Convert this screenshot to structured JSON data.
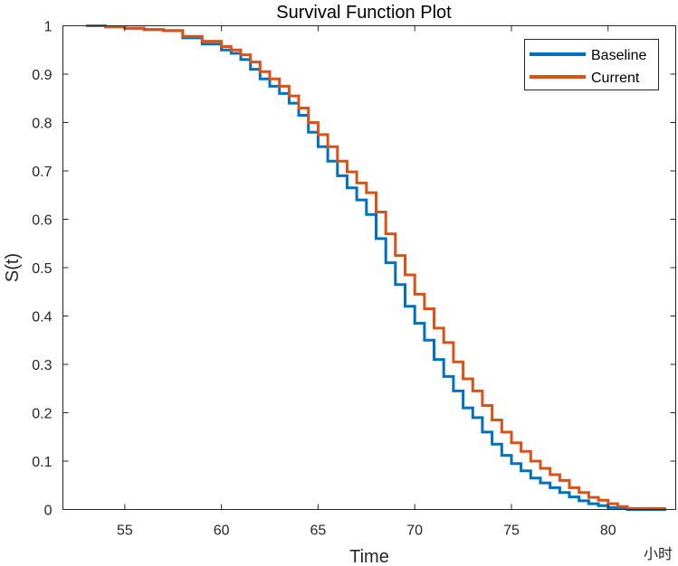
{
  "chart_data": {
    "type": "line",
    "title": "Survival Function Plot",
    "xlabel": "Time",
    "ylabel": "S(t)",
    "x_unit_note": "小时",
    "xlim": [
      51.8,
      83.5
    ],
    "ylim": [
      0,
      1
    ],
    "xticks": [
      55,
      60,
      65,
      70,
      75,
      80
    ],
    "yticks": [
      0,
      0.1,
      0.2,
      0.3,
      0.4,
      0.5,
      0.6,
      0.7,
      0.8,
      0.9,
      1
    ],
    "ytick_labels": [
      "0",
      "0.1",
      "0.2",
      "0.3",
      "0.4",
      "0.5",
      "0.6",
      "0.7",
      "0.8",
      "0.9",
      "1"
    ],
    "grid": false,
    "legend_position": "top-right",
    "series": [
      {
        "name": "Baseline",
        "color": "#0072BD",
        "points": [
          [
            53,
            1.0
          ],
          [
            54,
            0.998
          ],
          [
            55,
            0.995
          ],
          [
            56,
            0.992
          ],
          [
            57,
            0.99
          ],
          [
            58,
            0.975
          ],
          [
            59,
            0.962
          ],
          [
            60,
            0.95
          ],
          [
            60.5,
            0.943
          ],
          [
            61,
            0.93
          ],
          [
            61.5,
            0.91
          ],
          [
            62,
            0.89
          ],
          [
            62.5,
            0.875
          ],
          [
            63,
            0.86
          ],
          [
            63.5,
            0.84
          ],
          [
            64,
            0.815
          ],
          [
            64.5,
            0.78
          ],
          [
            65,
            0.75
          ],
          [
            65.5,
            0.72
          ],
          [
            66,
            0.69
          ],
          [
            66.5,
            0.665
          ],
          [
            67,
            0.64
          ],
          [
            67.5,
            0.61
          ],
          [
            68,
            0.56
          ],
          [
            68.5,
            0.51
          ],
          [
            69,
            0.465
          ],
          [
            69.5,
            0.42
          ],
          [
            70,
            0.385
          ],
          [
            70.5,
            0.35
          ],
          [
            71,
            0.31
          ],
          [
            71.5,
            0.275
          ],
          [
            72,
            0.245
          ],
          [
            72.5,
            0.21
          ],
          [
            73,
            0.19
          ],
          [
            73.5,
            0.16
          ],
          [
            74,
            0.135
          ],
          [
            74.5,
            0.112
          ],
          [
            75,
            0.095
          ],
          [
            75.5,
            0.08
          ],
          [
            76,
            0.065
          ],
          [
            76.5,
            0.055
          ],
          [
            77,
            0.045
          ],
          [
            77.5,
            0.035
          ],
          [
            78,
            0.026
          ],
          [
            78.5,
            0.018
          ],
          [
            79,
            0.012
          ],
          [
            79.5,
            0.008
          ],
          [
            80,
            0.004
          ],
          [
            80.5,
            0.002
          ],
          [
            81,
            0.0
          ],
          [
            83,
            0.0
          ]
        ]
      },
      {
        "name": "Current",
        "color": "#D95319",
        "points": [
          [
            53,
            1.0
          ],
          [
            54,
            0.998
          ],
          [
            55,
            0.995
          ],
          [
            56,
            0.992
          ],
          [
            57,
            0.99
          ],
          [
            58,
            0.978
          ],
          [
            59,
            0.968
          ],
          [
            60,
            0.957
          ],
          [
            60.5,
            0.95
          ],
          [
            61,
            0.94
          ],
          [
            61.5,
            0.925
          ],
          [
            62,
            0.905
          ],
          [
            62.5,
            0.89
          ],
          [
            63,
            0.875
          ],
          [
            63.5,
            0.855
          ],
          [
            64,
            0.83
          ],
          [
            64.5,
            0.8
          ],
          [
            65,
            0.775
          ],
          [
            65.5,
            0.75
          ],
          [
            66,
            0.72
          ],
          [
            66.5,
            0.698
          ],
          [
            67,
            0.675
          ],
          [
            67.5,
            0.655
          ],
          [
            68,
            0.615
          ],
          [
            68.5,
            0.57
          ],
          [
            69,
            0.525
          ],
          [
            69.5,
            0.485
          ],
          [
            70,
            0.445
          ],
          [
            70.5,
            0.415
          ],
          [
            71,
            0.375
          ],
          [
            71.5,
            0.345
          ],
          [
            72,
            0.305
          ],
          [
            72.5,
            0.27
          ],
          [
            73,
            0.245
          ],
          [
            73.5,
            0.215
          ],
          [
            74,
            0.185
          ],
          [
            74.5,
            0.16
          ],
          [
            75,
            0.138
          ],
          [
            75.5,
            0.12
          ],
          [
            76,
            0.1
          ],
          [
            76.5,
            0.085
          ],
          [
            77,
            0.072
          ],
          [
            77.5,
            0.06
          ],
          [
            78,
            0.045
          ],
          [
            78.5,
            0.035
          ],
          [
            79,
            0.025
          ],
          [
            79.5,
            0.019
          ],
          [
            80,
            0.012
          ],
          [
            80.5,
            0.006
          ],
          [
            81,
            0.002
          ],
          [
            83,
            0.002
          ]
        ]
      }
    ]
  }
}
